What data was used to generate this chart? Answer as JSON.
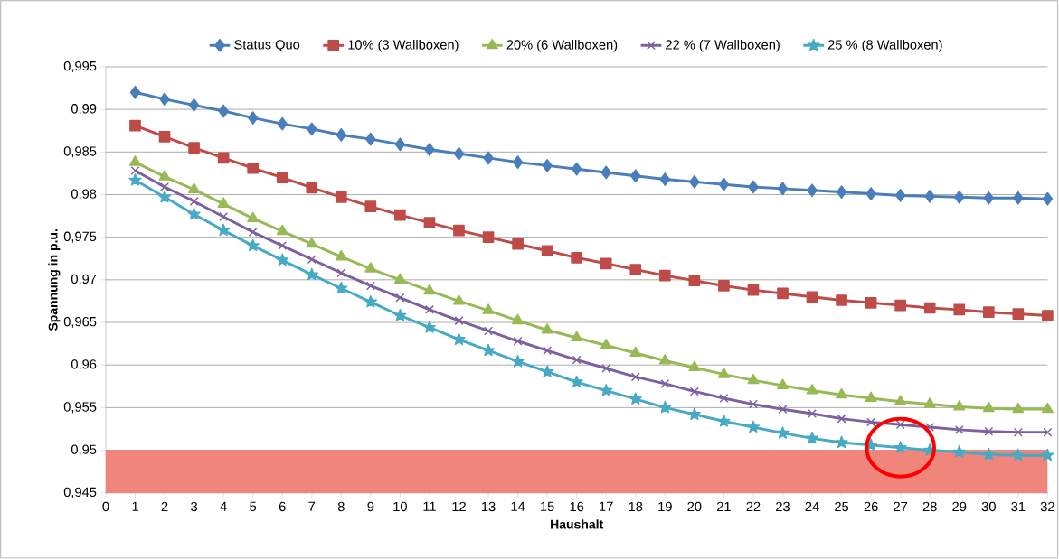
{
  "chart_data": {
    "type": "line",
    "xlabel": "Haushalt",
    "ylabel": "Spannung in p.u.",
    "x": [
      1,
      2,
      3,
      4,
      5,
      6,
      7,
      8,
      9,
      10,
      11,
      12,
      13,
      14,
      15,
      16,
      17,
      18,
      19,
      20,
      21,
      22,
      23,
      24,
      25,
      26,
      27,
      28,
      29,
      30,
      31,
      32
    ],
    "xlim": [
      0,
      32
    ],
    "xticks": [
      0,
      1,
      2,
      3,
      4,
      5,
      6,
      7,
      8,
      9,
      10,
      11,
      12,
      13,
      14,
      15,
      16,
      17,
      18,
      19,
      20,
      21,
      22,
      23,
      24,
      25,
      26,
      27,
      28,
      29,
      30,
      31,
      32
    ],
    "ylim": [
      0.945,
      0.995
    ],
    "yticks": [
      {
        "value": 0.945,
        "label": "0,945"
      },
      {
        "value": 0.95,
        "label": "0,95"
      },
      {
        "value": 0.955,
        "label": "0,955"
      },
      {
        "value": 0.96,
        "label": "0,96"
      },
      {
        "value": 0.965,
        "label": "0,965"
      },
      {
        "value": 0.97,
        "label": "0,97"
      },
      {
        "value": 0.975,
        "label": "0,975"
      },
      {
        "value": 0.98,
        "label": "0,98"
      },
      {
        "value": 0.985,
        "label": "0,985"
      },
      {
        "value": 0.99,
        "label": "0,99"
      },
      {
        "value": 0.995,
        "label": "0,995"
      }
    ],
    "grid": "y",
    "legend": "top",
    "bands": [
      {
        "axis": "y",
        "from": 0.945,
        "to": 0.95,
        "color": "#ef857b"
      }
    ],
    "series": [
      {
        "name": "Status Quo",
        "color": "#4a7ebb",
        "marker": "diamond",
        "values": [
          0.992,
          0.9912,
          0.9905,
          0.9898,
          0.989,
          0.9883,
          0.9877,
          0.987,
          0.9865,
          0.9859,
          0.9853,
          0.9848,
          0.9843,
          0.9838,
          0.9834,
          0.983,
          0.9826,
          0.9822,
          0.9818,
          0.9815,
          0.9812,
          0.9809,
          0.9807,
          0.9805,
          0.9803,
          0.9801,
          0.9799,
          0.9798,
          0.9797,
          0.9796,
          0.9796,
          0.9795
        ]
      },
      {
        "name": "10% (3 Wallboxen)",
        "color": "#be4b48",
        "marker": "square",
        "values": [
          0.9881,
          0.9868,
          0.9855,
          0.9843,
          0.9831,
          0.982,
          0.9808,
          0.9797,
          0.9786,
          0.9776,
          0.9767,
          0.9758,
          0.975,
          0.9742,
          0.9734,
          0.9726,
          0.9719,
          0.9712,
          0.9705,
          0.9699,
          0.9693,
          0.9688,
          0.9684,
          0.968,
          0.9676,
          0.9673,
          0.967,
          0.9667,
          0.9665,
          0.9662,
          0.966,
          0.9658
        ]
      },
      {
        "name": "20% (6 Wallboxen)",
        "color": "#98b954",
        "marker": "triangle",
        "values": [
          0.9838,
          0.9821,
          0.9806,
          0.9789,
          0.9772,
          0.9757,
          0.9742,
          0.9727,
          0.9713,
          0.97,
          0.9687,
          0.9675,
          0.9664,
          0.9652,
          0.9641,
          0.9632,
          0.9623,
          0.9614,
          0.9605,
          0.9597,
          0.9589,
          0.9582,
          0.9576,
          0.957,
          0.9565,
          0.9561,
          0.9557,
          0.9554,
          0.9551,
          0.9549,
          0.9548,
          0.9548
        ]
      },
      {
        "name": "22 % (7 Wallboxen)",
        "color": "#7d60a0",
        "marker": "cross",
        "values": [
          0.9828,
          0.9809,
          0.9792,
          0.9774,
          0.9756,
          0.974,
          0.9724,
          0.9708,
          0.9693,
          0.9679,
          0.9665,
          0.9652,
          0.964,
          0.9628,
          0.9617,
          0.9606,
          0.9596,
          0.9586,
          0.9578,
          0.9569,
          0.9561,
          0.9554,
          0.9548,
          0.9543,
          0.9537,
          0.9533,
          0.953,
          0.9527,
          0.9524,
          0.9522,
          0.9521,
          0.9521
        ]
      },
      {
        "name": "25 % (8 Wallboxen)",
        "color": "#46aac5",
        "marker": "star",
        "values": [
          0.9817,
          0.9797,
          0.9777,
          0.9758,
          0.974,
          0.9723,
          0.9706,
          0.969,
          0.9674,
          0.9658,
          0.9644,
          0.963,
          0.9617,
          0.9604,
          0.9592,
          0.958,
          0.957,
          0.956,
          0.955,
          0.9542,
          0.9534,
          0.9527,
          0.952,
          0.9514,
          0.9509,
          0.9506,
          0.9503,
          0.95,
          0.9498,
          0.9495,
          0.9494,
          0.9494
        ]
      }
    ]
  }
}
